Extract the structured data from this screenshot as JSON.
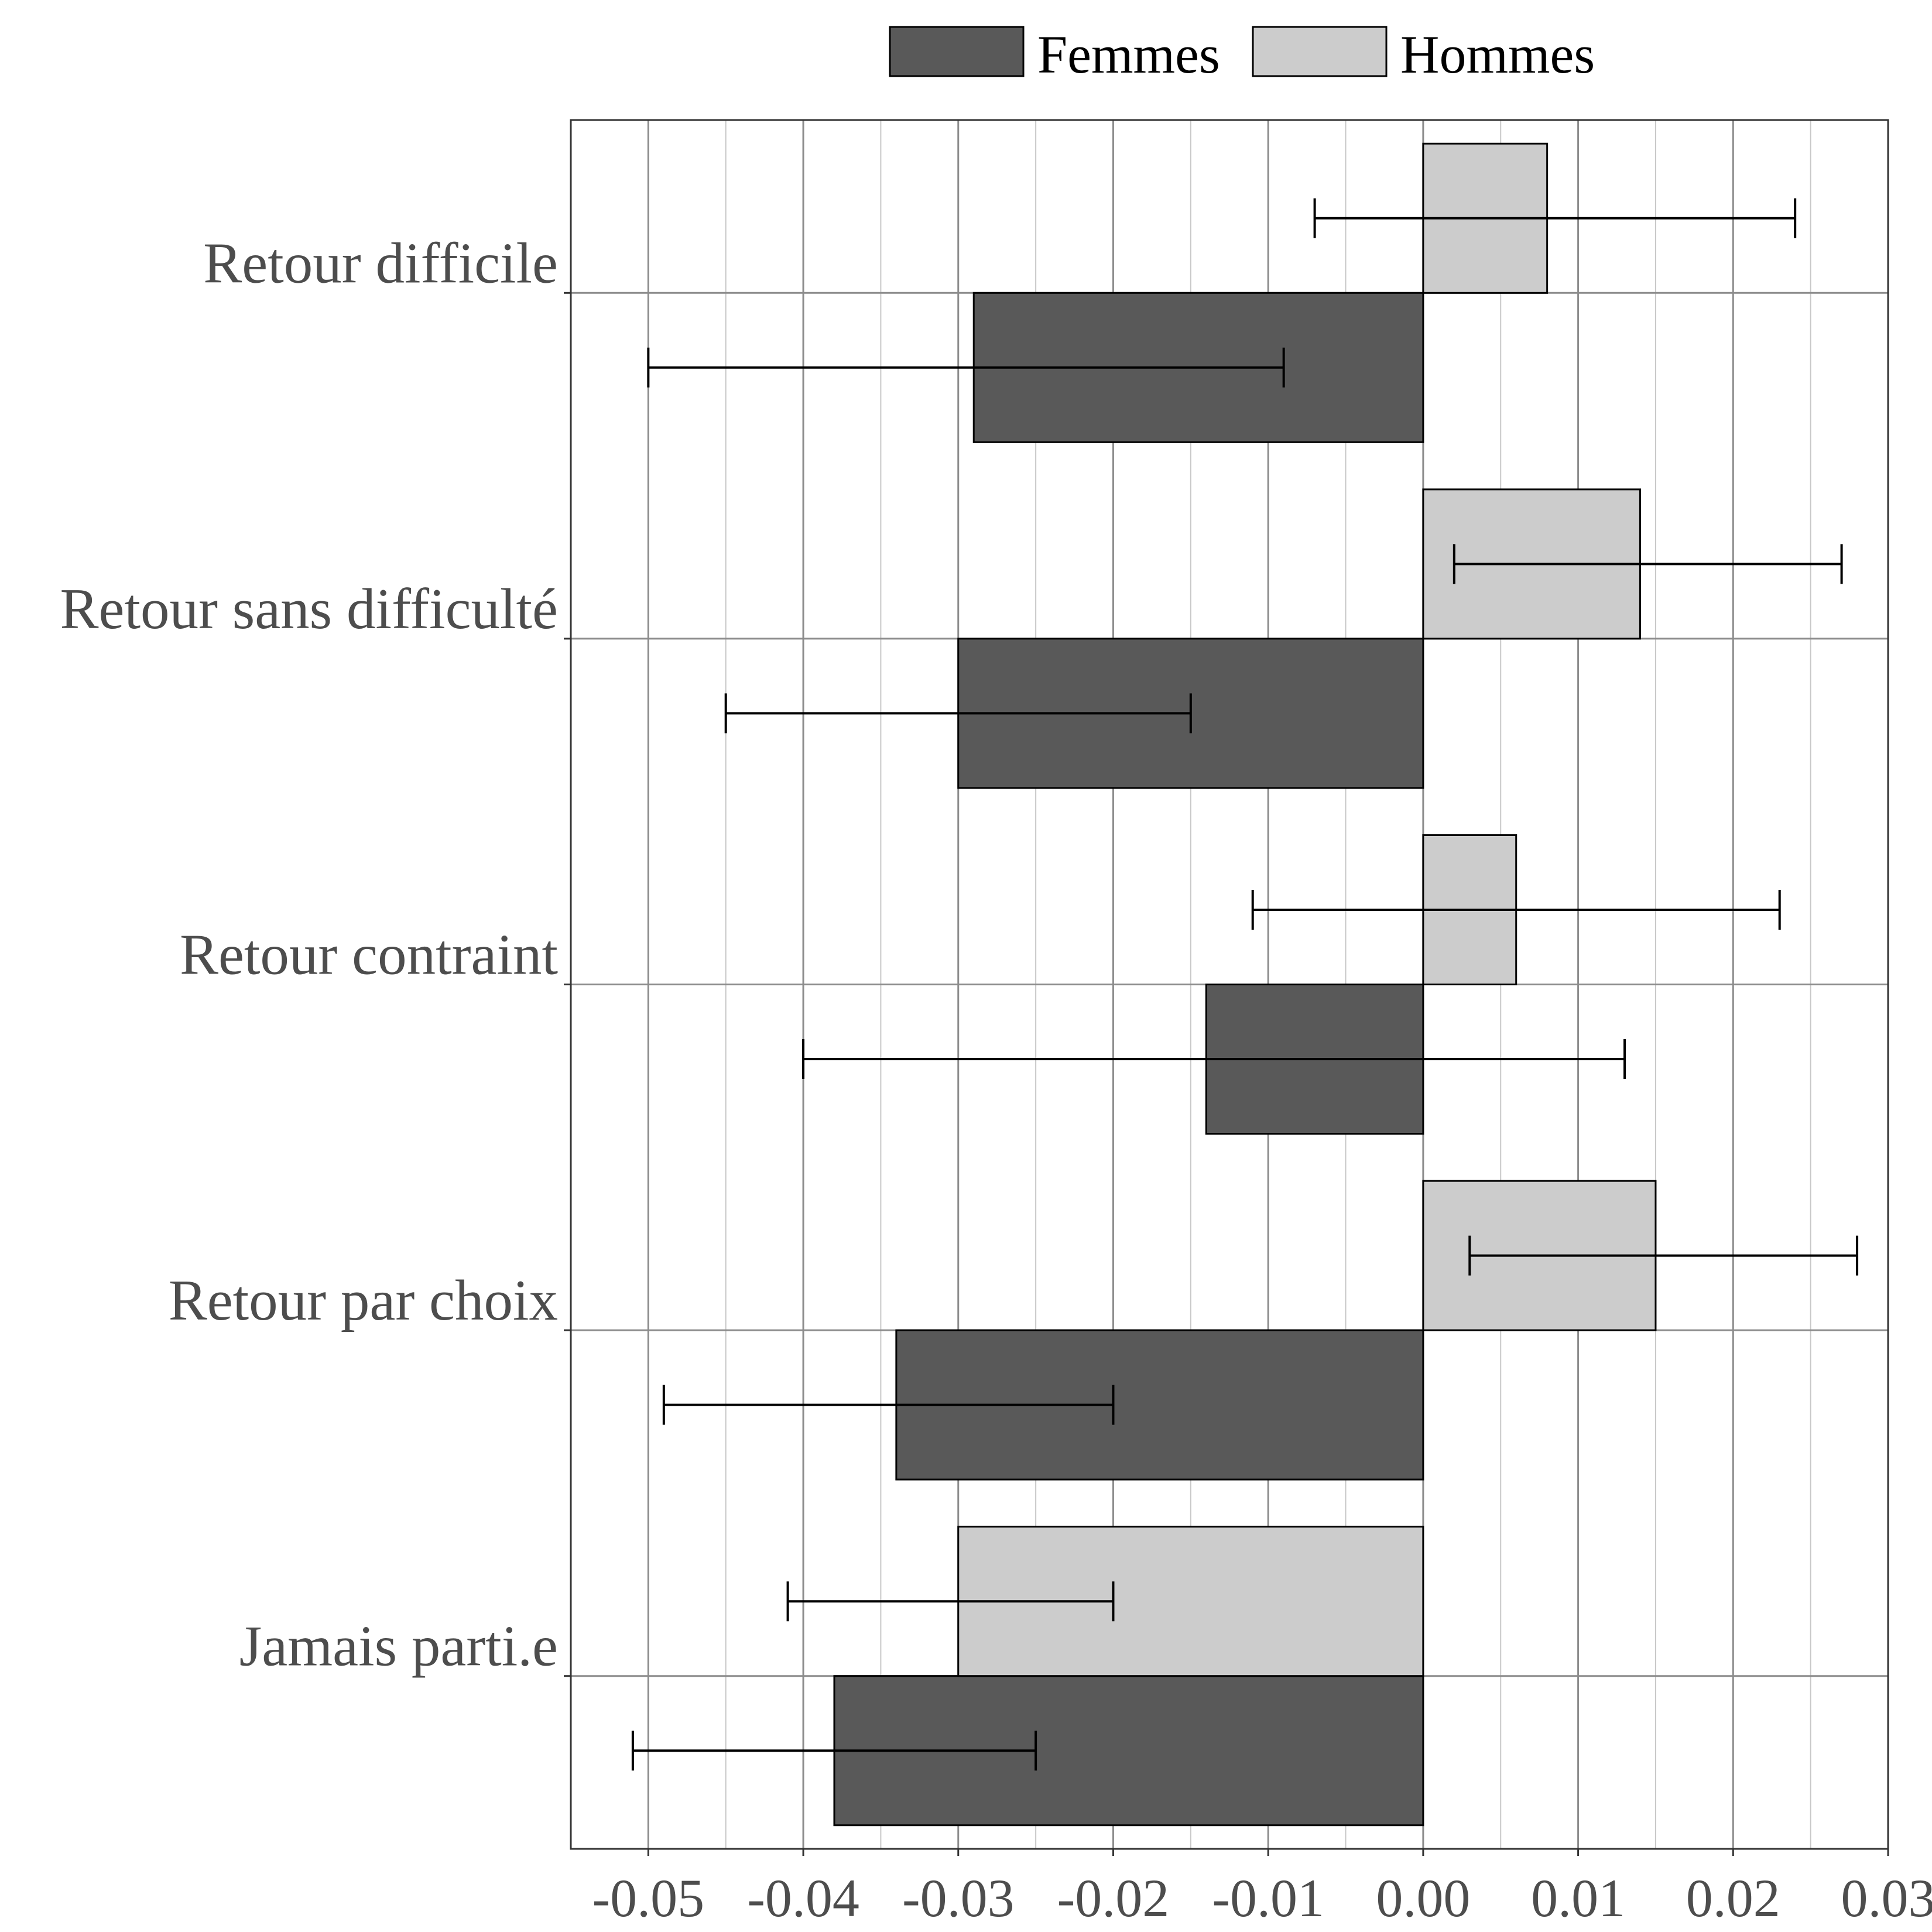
{
  "chart_data": {
    "type": "bar",
    "orientation": "horizontal",
    "categories": [
      "Retour difficile",
      "Retour sans difficulté",
      "Retour contraint",
      "Retour par choix",
      "Jamais parti.e"
    ],
    "series": [
      {
        "name": "Femmes",
        "color": "#595959",
        "values": [
          -0.029,
          -0.03,
          -0.014,
          -0.034,
          -0.038
        ],
        "ci_low": [
          -0.05,
          -0.045,
          -0.04,
          -0.049,
          -0.051
        ],
        "ci_high": [
          -0.009,
          -0.015,
          0.013,
          -0.02,
          -0.025
        ]
      },
      {
        "name": "Hommes",
        "color": "#cccccc",
        "values": [
          0.008,
          0.014,
          0.006,
          0.015,
          -0.03
        ],
        "ci_low": [
          -0.007,
          0.002,
          -0.011,
          0.003,
          -0.041
        ],
        "ci_high": [
          0.024,
          0.027,
          0.023,
          0.028,
          -0.02
        ]
      }
    ],
    "xticks": [
      "-0.05",
      "-0.04",
      "-0.03",
      "-0.02",
      "-0.01",
      "0.00",
      "0.01",
      "0.02",
      "0.03"
    ],
    "xlim": [
      -0.055,
      0.03
    ],
    "title": "",
    "xlabel": "",
    "ylabel": "",
    "grid": true,
    "legend_position": "top"
  }
}
